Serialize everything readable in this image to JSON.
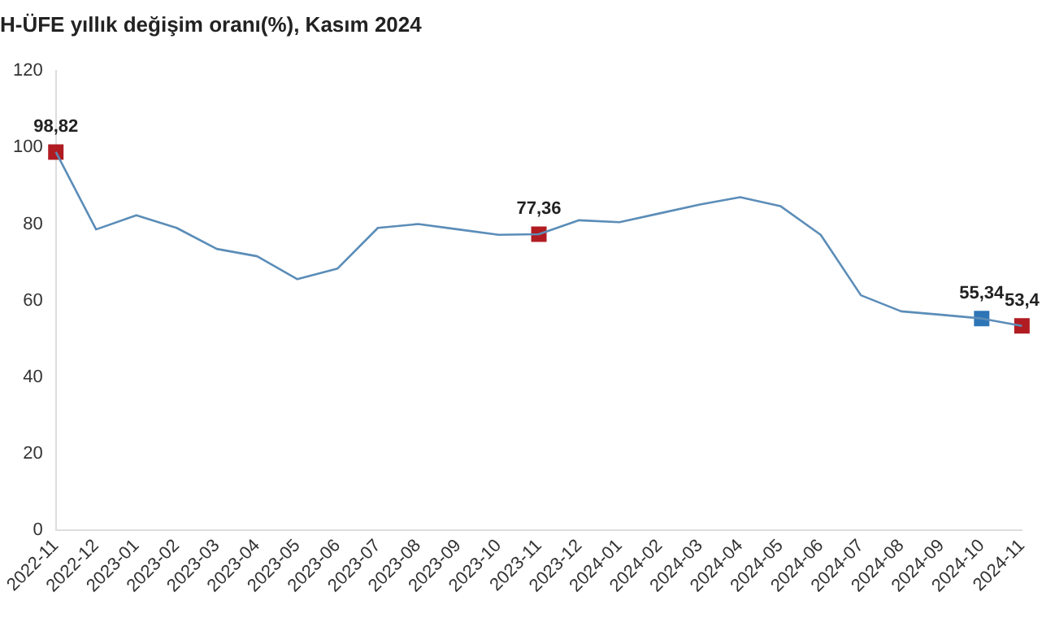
{
  "chart_data": {
    "type": "line",
    "title": "H-ÜFE yıllık değişim oranı(%), Kasım 2024",
    "categories": [
      "2022-11",
      "2022-12",
      "2023-01",
      "2023-02",
      "2023-03",
      "2023-04",
      "2023-05",
      "2023-06",
      "2023-07",
      "2023-08",
      "2023-09",
      "2023-10",
      "2023-11",
      "2023-12",
      "2024-01",
      "2024-02",
      "2024-03",
      "2024-04",
      "2024-05",
      "2024-06",
      "2024-07",
      "2024-08",
      "2024-09",
      "2024-10",
      "2024-11"
    ],
    "series": [
      {
        "color": "#5b8db8",
        "marker": "none",
        "values": [
          98.82,
          78.6,
          82.3,
          79,
          73.5,
          71.6,
          65.6,
          68.4,
          79,
          80,
          78.6,
          77.2,
          77.36,
          81,
          80.5,
          82.8,
          85.1,
          87,
          84.7,
          77.2,
          61.4,
          57.2,
          56.3,
          55.34,
          53.4
        ]
      },
      {
        "type": "scatter",
        "marker": "square",
        "colors": [
          "#b01c22",
          null,
          null,
          null,
          null,
          null,
          null,
          null,
          null,
          null,
          null,
          null,
          "#b01c22",
          null,
          null,
          null,
          null,
          null,
          null,
          null,
          null,
          null,
          null,
          "#2e75b6",
          "#b01c22"
        ],
        "values": [
          98.82,
          null,
          null,
          null,
          null,
          null,
          null,
          null,
          null,
          null,
          null,
          null,
          77.36,
          null,
          null,
          null,
          null,
          null,
          null,
          null,
          null,
          null,
          null,
          55.34,
          53.4
        ],
        "value_labels": [
          "98,82",
          null,
          null,
          null,
          null,
          null,
          null,
          null,
          null,
          null,
          null,
          null,
          "77,36",
          null,
          null,
          null,
          null,
          null,
          null,
          null,
          null,
          null,
          null,
          "55,34",
          "53,4"
        ]
      }
    ],
    "ylim": [
      0,
      120
    ],
    "yticks": [
      0,
      20,
      40,
      60,
      80,
      100,
      120
    ],
    "grid": false,
    "legend": false
  }
}
